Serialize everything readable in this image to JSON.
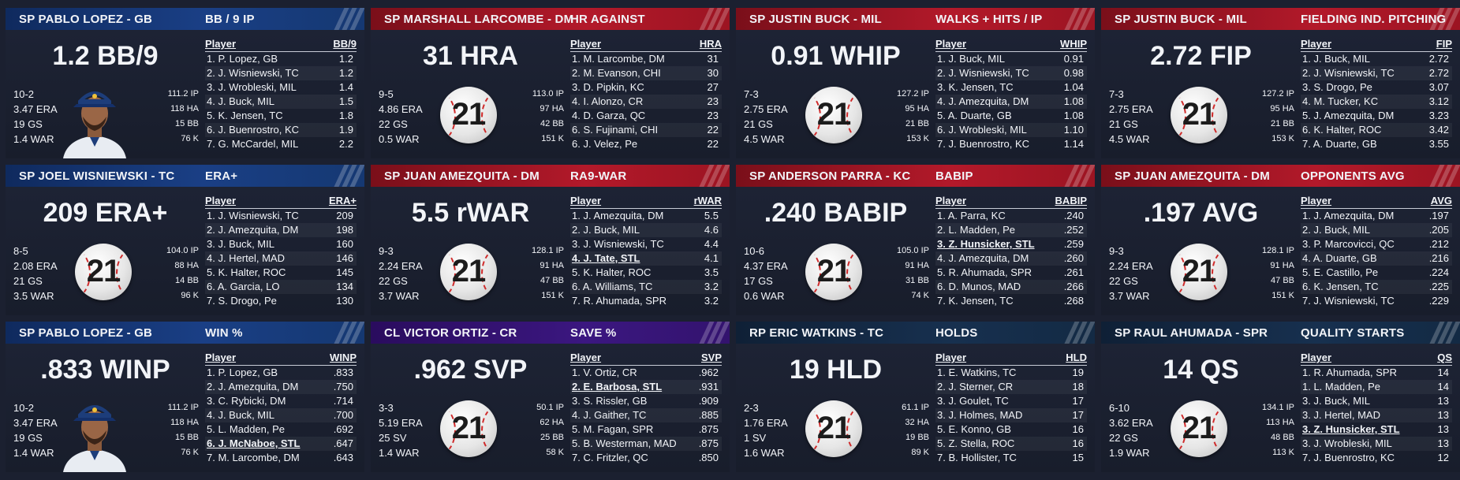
{
  "cards": [
    {
      "color": "blue",
      "player": "SP PABLO LOPEZ - GB",
      "stat_title": "BB / 9 IP",
      "big": "1.2 BB/9",
      "line": [
        "10-2",
        "3.47 ERA",
        "19 GS",
        "1.4 WAR"
      ],
      "right": [
        "111.2 IP",
        "118 HA",
        "15 BB",
        "76 K"
      ],
      "image": "player-portrait",
      "head": [
        "Player",
        "BB/9"
      ],
      "rows": [
        [
          "1. P. Lopez, GB",
          "1.2"
        ],
        [
          "2. J. Wisniewski, TC",
          "1.2"
        ],
        [
          "3. J. Wrobleski, MIL",
          "1.4"
        ],
        [
          "4. J. Buck, MIL",
          "1.5"
        ],
        [
          "5. K. Jensen, TC",
          "1.8"
        ],
        [
          "6. J. Buenrostro, KC",
          "1.9"
        ],
        [
          "7. G. McCardel, MIL",
          "2.2"
        ]
      ]
    },
    {
      "color": "red",
      "player": "SP MARSHALL LARCOMBE - DM",
      "stat_title": "HR AGAINST",
      "big": "31 HRA",
      "line": [
        "9-5",
        "4.86 ERA",
        "22 GS",
        "0.5 WAR"
      ],
      "right": [
        "113.0 IP",
        "97 HA",
        "42 BB",
        "151 K"
      ],
      "image": "logo",
      "head": [
        "Player",
        "HRA"
      ],
      "rows": [
        [
          "1. M. Larcombe, DM",
          "31"
        ],
        [
          "2. M. Evanson, CHI",
          "30"
        ],
        [
          "3. D. Pipkin, KC",
          "27"
        ],
        [
          "4. I. Alonzo, CR",
          "23"
        ],
        [
          "4. D. Garza, QC",
          "23"
        ],
        [
          "6. S. Fujinami, CHI",
          "22"
        ],
        [
          "6. J. Velez, Pe",
          "22"
        ]
      ]
    },
    {
      "color": "red",
      "player": "SP JUSTIN BUCK - MIL",
      "stat_title": "WALKS + HITS / IP",
      "big": "0.91 WHIP",
      "line": [
        "7-3",
        "2.75 ERA",
        "21 GS",
        "4.5 WAR"
      ],
      "right": [
        "127.2 IP",
        "95 HA",
        "21 BB",
        "153 K"
      ],
      "image": "logo",
      "head": [
        "Player",
        "WHIP"
      ],
      "rows": [
        [
          "1. J. Buck, MIL",
          "0.91"
        ],
        [
          "2. J. Wisniewski, TC",
          "0.98"
        ],
        [
          "3. K. Jensen, TC",
          "1.04"
        ],
        [
          "4. J. Amezquita, DM",
          "1.08"
        ],
        [
          "5. A. Duarte, GB",
          "1.08"
        ],
        [
          "6. J. Wrobleski, MIL",
          "1.10"
        ],
        [
          "7. J. Buenrostro, KC",
          "1.14"
        ]
      ]
    },
    {
      "color": "red",
      "player": "SP JUSTIN BUCK - MIL",
      "stat_title": "FIELDING IND. PITCHING",
      "big": "2.72 FIP",
      "line": [
        "7-3",
        "2.75 ERA",
        "21 GS",
        "4.5 WAR"
      ],
      "right": [
        "127.2 IP",
        "95 HA",
        "21 BB",
        "153 K"
      ],
      "image": "logo",
      "head": [
        "Player",
        "FIP"
      ],
      "rows": [
        [
          "1. J. Buck, MIL",
          "2.72"
        ],
        [
          "2. J. Wisniewski, TC",
          "2.72"
        ],
        [
          "3. S. Drogo, Pe",
          "3.07"
        ],
        [
          "4. M. Tucker, KC",
          "3.12"
        ],
        [
          "5. J. Amezquita, DM",
          "3.23"
        ],
        [
          "6. K. Halter, ROC",
          "3.42"
        ],
        [
          "7. A. Duarte, GB",
          "3.55"
        ]
      ]
    },
    {
      "color": "blue",
      "player": "SP JOEL WISNIEWSKI - TC",
      "stat_title": "ERA+",
      "big": "209 ERA+",
      "line": [
        "8-5",
        "2.08 ERA",
        "21 GS",
        "3.5 WAR"
      ],
      "right": [
        "104.0 IP",
        "88 HA",
        "14 BB",
        "96 K"
      ],
      "image": "logo",
      "head": [
        "Player",
        "ERA+"
      ],
      "rows": [
        [
          "1. J. Wisniewski, TC",
          "209"
        ],
        [
          "2. J. Amezquita, DM",
          "198"
        ],
        [
          "3. J. Buck, MIL",
          "160"
        ],
        [
          "4. J. Hertel, MAD",
          "146"
        ],
        [
          "5. K. Halter, ROC",
          "145"
        ],
        [
          "6. A. Garcia, LO",
          "134"
        ],
        [
          "7. S. Drogo, Pe",
          "130"
        ]
      ]
    },
    {
      "color": "red",
      "player": "SP JUAN AMEZQUITA - DM",
      "stat_title": "RA9-WAR",
      "big": "5.5 rWAR",
      "line": [
        "9-3",
        "2.24 ERA",
        "22 GS",
        "3.7 WAR"
      ],
      "right": [
        "128.1 IP",
        "91 HA",
        "47 BB",
        "151 K"
      ],
      "image": "logo",
      "head": [
        "Player",
        "rWAR"
      ],
      "rows": [
        [
          "1. J. Amezquita, DM",
          "5.5"
        ],
        [
          "2. J. Buck, MIL",
          "4.6"
        ],
        [
          "3. J. Wisniewski, TC",
          "4.4"
        ],
        [
          "4. J. Tate, STL",
          "4.1",
          true
        ],
        [
          "5. K. Halter, ROC",
          "3.5"
        ],
        [
          "6. A. Williams, TC",
          "3.2"
        ],
        [
          "7. R. Ahumada, SPR",
          "3.2"
        ]
      ]
    },
    {
      "color": "red",
      "player": "SP ANDERSON PARRA - KC",
      "stat_title": "BABIP",
      "big": ".240 BABIP",
      "line": [
        "10-6",
        "4.37 ERA",
        "17 GS",
        "0.6 WAR"
      ],
      "right": [
        "105.0 IP",
        "91 HA",
        "31 BB",
        "74 K"
      ],
      "image": "logo",
      "head": [
        "Player",
        "BABIP"
      ],
      "rows": [
        [
          "1. A. Parra, KC",
          ".240"
        ],
        [
          "2. L. Madden, Pe",
          ".252"
        ],
        [
          "3. Z. Hunsicker, STL",
          ".259",
          true
        ],
        [
          "4. J. Amezquita, DM",
          ".260"
        ],
        [
          "5. R. Ahumada, SPR",
          ".261"
        ],
        [
          "6. D. Munos, MAD",
          ".266"
        ],
        [
          "7. K. Jensen, TC",
          ".268"
        ]
      ]
    },
    {
      "color": "red",
      "player": "SP JUAN AMEZQUITA - DM",
      "stat_title": "OPPONENTS AVG",
      "big": ".197 AVG",
      "line": [
        "9-3",
        "2.24 ERA",
        "22 GS",
        "3.7 WAR"
      ],
      "right": [
        "128.1 IP",
        "91 HA",
        "47 BB",
        "151 K"
      ],
      "image": "logo",
      "head": [
        "Player",
        "AVG"
      ],
      "rows": [
        [
          "1. J. Amezquita, DM",
          ".197"
        ],
        [
          "2. J. Buck, MIL",
          ".205"
        ],
        [
          "3. P. Marcovicci, QC",
          ".212"
        ],
        [
          "4. A. Duarte, GB",
          ".216"
        ],
        [
          "5. E. Castillo, Pe",
          ".224"
        ],
        [
          "6. K. Jensen, TC",
          ".225"
        ],
        [
          "7. J. Wisniewski, TC",
          ".229"
        ]
      ]
    },
    {
      "color": "blue",
      "player": "SP PABLO LOPEZ - GB",
      "stat_title": "WIN %",
      "big": ".833 WINP",
      "line": [
        "10-2",
        "3.47 ERA",
        "19 GS",
        "1.4 WAR"
      ],
      "right": [
        "111.2 IP",
        "118 HA",
        "15 BB",
        "76 K"
      ],
      "image": "player-portrait",
      "head": [
        "Player",
        "WINP"
      ],
      "rows": [
        [
          "1. P. Lopez, GB",
          ".833"
        ],
        [
          "2. J. Amezquita, DM",
          ".750"
        ],
        [
          "3. C. Rybicki, DM",
          ".714"
        ],
        [
          "4. J. Buck, MIL",
          ".700"
        ],
        [
          "5. L. Madden, Pe",
          ".692"
        ],
        [
          "6. J. McNaboe, STL",
          ".647",
          true
        ],
        [
          "7. M. Larcombe, DM",
          ".643"
        ]
      ]
    },
    {
      "color": "purple",
      "player": "CL VICTOR ORTIZ - CR",
      "stat_title": "SAVE %",
      "big": ".962 SVP",
      "line": [
        "3-3",
        "5.19 ERA",
        "25 SV",
        "1.4 WAR"
      ],
      "right": [
        "50.1 IP",
        "62 HA",
        "25 BB",
        "58 K"
      ],
      "image": "logo",
      "head": [
        "Player",
        "SVP"
      ],
      "rows": [
        [
          "1. V. Ortiz, CR",
          ".962"
        ],
        [
          "2. E. Barbosa, STL",
          ".931",
          true
        ],
        [
          "3. S. Rissler, GB",
          ".909"
        ],
        [
          "4. J. Gaither, TC",
          ".885"
        ],
        [
          "5. M. Fagan, SPR",
          ".875"
        ],
        [
          "5. B. Westerman, MAD",
          ".875"
        ],
        [
          "7. C. Fritzler, QC",
          ".850"
        ]
      ]
    },
    {
      "color": "navy",
      "player": "RP ERIC WATKINS - TC",
      "stat_title": "HOLDS",
      "big": "19 HLD",
      "line": [
        "2-3",
        "1.76 ERA",
        "1 SV",
        "1.6 WAR"
      ],
      "right": [
        "61.1 IP",
        "32 HA",
        "19 BB",
        "89 K"
      ],
      "image": "logo",
      "head": [
        "Player",
        "HLD"
      ],
      "rows": [
        [
          "1. E. Watkins, TC",
          "19"
        ],
        [
          "2. J. Sterner, CR",
          "18"
        ],
        [
          "3. J. Goulet, TC",
          "17"
        ],
        [
          "3. J. Holmes, MAD",
          "17"
        ],
        [
          "5. E. Konno, GB",
          "16"
        ],
        [
          "5. Z. Stella, ROC",
          "16"
        ],
        [
          "7. B. Hollister, TC",
          "15"
        ]
      ]
    },
    {
      "color": "navy",
      "player": "SP RAUL AHUMADA - SPR",
      "stat_title": "QUALITY STARTS",
      "big": "14 QS",
      "line": [
        "6-10",
        "3.62 ERA",
        "22 GS",
        "1.9 WAR"
      ],
      "right": [
        "134.1 IP",
        "113 HA",
        "48 BB",
        "113 K"
      ],
      "image": "logo",
      "head": [
        "Player",
        "QS"
      ],
      "rows": [
        [
          "1. R. Ahumada, SPR",
          "14"
        ],
        [
          "1. L. Madden, Pe",
          "14"
        ],
        [
          "3. J. Buck, MIL",
          "13"
        ],
        [
          "3. J. Hertel, MAD",
          "13"
        ],
        [
          "3. Z. Hunsicker, STL",
          "13",
          true
        ],
        [
          "3. J. Wrobleski, MIL",
          "13"
        ],
        [
          "7. J. Buenrostro, KC",
          "12"
        ]
      ]
    }
  ],
  "logo_number": "21"
}
